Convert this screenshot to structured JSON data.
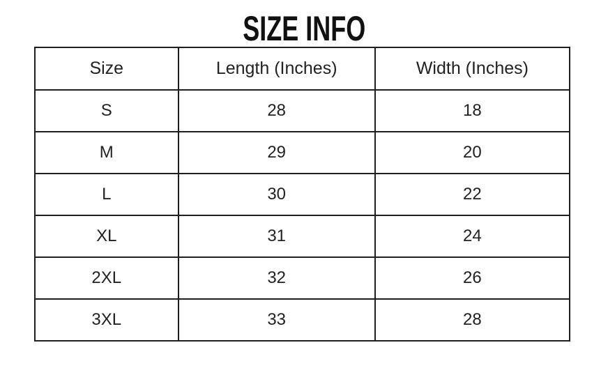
{
  "title": "SIZE INFO",
  "table": {
    "columns": [
      "Size",
      "Length (Inches)",
      "Width (Inches)"
    ],
    "rows": [
      {
        "size": "S",
        "length": "28",
        "width": "18"
      },
      {
        "size": "M",
        "length": "29",
        "width": "20"
      },
      {
        "size": "L",
        "length": "30",
        "width": "22"
      },
      {
        "size": "XL",
        "length": "31",
        "width": "24"
      },
      {
        "size": "2XL",
        "length": "32",
        "width": "26"
      },
      {
        "size": "3XL",
        "length": "33",
        "width": "28"
      }
    ]
  },
  "chart_data": {
    "type": "table",
    "title": "SIZE INFO",
    "columns": [
      "Size",
      "Length (Inches)",
      "Width (Inches)"
    ],
    "rows": [
      [
        "S",
        28,
        18
      ],
      [
        "M",
        29,
        20
      ],
      [
        "L",
        30,
        22
      ],
      [
        "XL",
        31,
        24
      ],
      [
        "2XL",
        32,
        26
      ],
      [
        "3XL",
        33,
        28
      ]
    ]
  },
  "colors": {
    "background": "#ffffff",
    "border": "#1e1e1e",
    "text": "#222222",
    "title_text": "#111111"
  }
}
